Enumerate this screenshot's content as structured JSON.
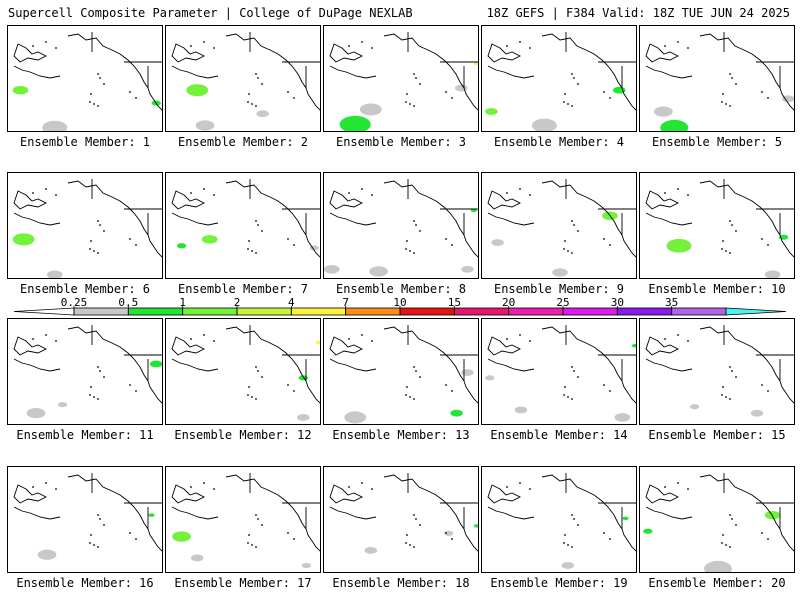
{
  "header": {
    "left": "Supercell Composite Parameter | College of DuPage NEXLAB",
    "right": "18Z GEFS | F384 Valid: 18Z TUE JUN 24 2025"
  },
  "legend": {
    "ticks": [
      "0.25",
      "0.5",
      "1",
      "2",
      "4",
      "7",
      "10",
      "15",
      "20",
      "25",
      "30",
      "35"
    ],
    "colors": [
      "#c8c8c8",
      "#22e633",
      "#74f23a",
      "#c6f63c",
      "#fff23c",
      "#ff8c1a",
      "#e81414",
      "#e6176e",
      "#f01ab4",
      "#dd1aee",
      "#8c1aee",
      "#b263e6",
      "#4ef2f2"
    ]
  },
  "members": [
    {
      "label": "Ensemble Member: 1",
      "blobs": [
        [
          0.08,
          0.6,
          0.05,
          "#74f23a"
        ],
        [
          0.95,
          0.72,
          0.03,
          "#22e633"
        ],
        [
          0.3,
          0.95,
          0.08,
          "#c8c8c8"
        ]
      ]
    },
    {
      "label": "Ensemble Member: 2",
      "blobs": [
        [
          0.2,
          0.6,
          0.07,
          "#74f23a"
        ],
        [
          0.25,
          0.93,
          0.06,
          "#c8c8c8"
        ],
        [
          0.62,
          0.82,
          0.04,
          "#c8c8c8"
        ]
      ]
    },
    {
      "label": "Ensemble Member: 3",
      "blobs": [
        [
          0.2,
          0.92,
          0.1,
          "#22e633"
        ],
        [
          0.3,
          0.78,
          0.07,
          "#c8c8c8"
        ],
        [
          0.88,
          0.58,
          0.04,
          "#c8c8c8"
        ],
        [
          0.98,
          0.35,
          0.02,
          "#fff23c"
        ]
      ]
    },
    {
      "label": "Ensemble Member: 4",
      "blobs": [
        [
          0.06,
          0.8,
          0.04,
          "#74f23a"
        ],
        [
          0.4,
          0.93,
          0.08,
          "#c8c8c8"
        ],
        [
          0.88,
          0.6,
          0.04,
          "#22e633"
        ]
      ]
    },
    {
      "label": "Ensemble Member: 5",
      "blobs": [
        [
          0.22,
          0.95,
          0.09,
          "#22e633"
        ],
        [
          0.15,
          0.8,
          0.06,
          "#c8c8c8"
        ],
        [
          0.95,
          0.68,
          0.04,
          "#c8c8c8"
        ]
      ]
    },
    {
      "label": "Ensemble Member: 6",
      "blobs": [
        [
          0.1,
          0.62,
          0.07,
          "#74f23a"
        ],
        [
          0.3,
          0.95,
          0.05,
          "#c8c8c8"
        ]
      ]
    },
    {
      "label": "Ensemble Member: 7",
      "blobs": [
        [
          0.28,
          0.62,
          0.05,
          "#74f23a"
        ],
        [
          0.1,
          0.68,
          0.03,
          "#22e633"
        ],
        [
          0.95,
          0.7,
          0.03,
          "#c8c8c8"
        ]
      ]
    },
    {
      "label": "Ensemble Member: 8",
      "blobs": [
        [
          0.05,
          0.9,
          0.05,
          "#c8c8c8"
        ],
        [
          0.35,
          0.92,
          0.06,
          "#c8c8c8"
        ],
        [
          0.92,
          0.9,
          0.04,
          "#c8c8c8"
        ],
        [
          0.96,
          0.35,
          0.02,
          "#22e633"
        ]
      ]
    },
    {
      "label": "Ensemble Member: 9",
      "blobs": [
        [
          0.82,
          0.4,
          0.05,
          "#74f23a"
        ],
        [
          0.1,
          0.65,
          0.04,
          "#c8c8c8"
        ],
        [
          0.5,
          0.93,
          0.05,
          "#c8c8c8"
        ]
      ]
    },
    {
      "label": "Ensemble Member: 10",
      "blobs": [
        [
          0.25,
          0.68,
          0.08,
          "#74f23a"
        ],
        [
          0.92,
          0.6,
          0.03,
          "#22e633"
        ],
        [
          0.85,
          0.95,
          0.05,
          "#c8c8c8"
        ]
      ]
    },
    {
      "label": "Ensemble Member: 11",
      "blobs": [
        [
          0.95,
          0.42,
          0.04,
          "#22e633"
        ],
        [
          0.18,
          0.88,
          0.06,
          "#c8c8c8"
        ],
        [
          0.35,
          0.8,
          0.03,
          "#c8c8c8"
        ]
      ]
    },
    {
      "label": "Ensemble Member: 12",
      "blobs": [
        [
          0.98,
          0.22,
          0.02,
          "#fff23c"
        ],
        [
          0.88,
          0.55,
          0.03,
          "#22e633"
        ],
        [
          0.88,
          0.92,
          0.04,
          "#c8c8c8"
        ]
      ]
    },
    {
      "label": "Ensemble Member: 13",
      "blobs": [
        [
          0.92,
          0.5,
          0.04,
          "#c8c8c8"
        ],
        [
          0.2,
          0.92,
          0.07,
          "#c8c8c8"
        ],
        [
          0.85,
          0.88,
          0.04,
          "#22e633"
        ]
      ]
    },
    {
      "label": "Ensemble Member: 14",
      "blobs": [
        [
          0.05,
          0.55,
          0.03,
          "#c8c8c8"
        ],
        [
          0.25,
          0.85,
          0.04,
          "#c8c8c8"
        ],
        [
          0.9,
          0.92,
          0.05,
          "#c8c8c8"
        ],
        [
          0.98,
          0.25,
          0.02,
          "#22e633"
        ]
      ]
    },
    {
      "label": "Ensemble Member: 15",
      "blobs": [
        [
          0.35,
          0.82,
          0.03,
          "#c8c8c8"
        ],
        [
          0.75,
          0.88,
          0.04,
          "#c8c8c8"
        ]
      ]
    },
    {
      "label": "Ensemble Member: 16",
      "blobs": [
        [
          0.25,
          0.82,
          0.06,
          "#c8c8c8"
        ],
        [
          0.92,
          0.45,
          0.02,
          "#22e633"
        ]
      ]
    },
    {
      "label": "Ensemble Member: 17",
      "blobs": [
        [
          0.1,
          0.65,
          0.06,
          "#74f23a"
        ],
        [
          0.2,
          0.85,
          0.04,
          "#c8c8c8"
        ],
        [
          0.9,
          0.92,
          0.03,
          "#c8c8c8"
        ]
      ]
    },
    {
      "label": "Ensemble Member: 18",
      "blobs": [
        [
          0.3,
          0.78,
          0.04,
          "#c8c8c8"
        ],
        [
          0.8,
          0.62,
          0.03,
          "#c8c8c8"
        ],
        [
          0.98,
          0.55,
          0.02,
          "#22e633"
        ]
      ]
    },
    {
      "label": "Ensemble Member: 19",
      "blobs": [
        [
          0.92,
          0.48,
          0.02,
          "#22e633"
        ],
        [
          0.55,
          0.92,
          0.04,
          "#c8c8c8"
        ]
      ]
    },
    {
      "label": "Ensemble Member: 20",
      "blobs": [
        [
          0.85,
          0.45,
          0.05,
          "#74f23a"
        ],
        [
          0.5,
          0.95,
          0.09,
          "#c8c8c8"
        ],
        [
          0.05,
          0.6,
          0.03,
          "#22e633"
        ]
      ]
    }
  ]
}
